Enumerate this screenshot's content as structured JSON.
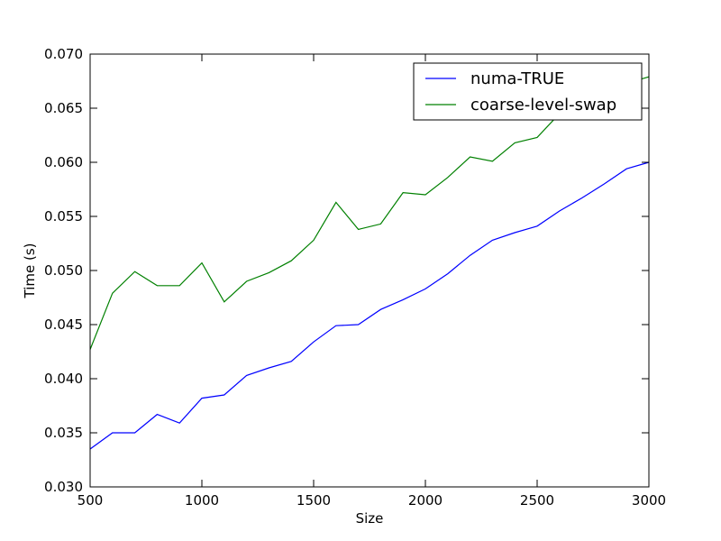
{
  "chart_data": {
    "type": "line",
    "title": "",
    "xlabel": "Size",
    "ylabel": "Time (s)",
    "xlim": [
      500,
      3000
    ],
    "ylim": [
      0.03,
      0.07
    ],
    "grid": false,
    "legend_position": "top-right",
    "x_ticks": [
      500,
      1000,
      1500,
      2000,
      2500,
      3000
    ],
    "x_tick_labels": [
      "500",
      "1000",
      "1500",
      "2000",
      "2500",
      "3000"
    ],
    "y_ticks": [
      0.03,
      0.035,
      0.04,
      0.045,
      0.05,
      0.055,
      0.06,
      0.065,
      0.07
    ],
    "y_tick_labels": [
      "0.030",
      "0.035",
      "0.040",
      "0.045",
      "0.050",
      "0.055",
      "0.060",
      "0.065",
      "0.070"
    ],
    "x": [
      500,
      600,
      700,
      800,
      900,
      1000,
      1100,
      1200,
      1300,
      1400,
      1500,
      1600,
      1700,
      1800,
      1900,
      2000,
      2100,
      2200,
      2300,
      2400,
      2500,
      2600,
      2700,
      2800,
      2900,
      3000
    ],
    "series": [
      {
        "name": "numa-TRUE",
        "color": "#0000ff",
        "values": [
          0.0335,
          0.035,
          0.035,
          0.0367,
          0.0359,
          0.0382,
          0.0385,
          0.0403,
          0.041,
          0.0416,
          0.0434,
          0.0449,
          0.045,
          0.0464,
          0.0473,
          0.0483,
          0.0497,
          0.0514,
          0.0528,
          0.0535,
          0.0541,
          0.0555,
          0.0567,
          0.058,
          0.0594,
          0.06
        ]
      },
      {
        "name": "coarse-level-swap",
        "color": "#008000",
        "values": [
          0.0427,
          0.0479,
          0.0499,
          0.0486,
          0.0486,
          0.0507,
          0.0471,
          0.049,
          0.0498,
          0.0509,
          0.0528,
          0.0563,
          0.0538,
          0.0543,
          0.0572,
          0.057,
          0.0586,
          0.0605,
          0.0601,
          0.0618,
          0.0623,
          0.0645,
          0.0655,
          0.0664,
          0.0673,
          0.0679
        ]
      }
    ]
  }
}
